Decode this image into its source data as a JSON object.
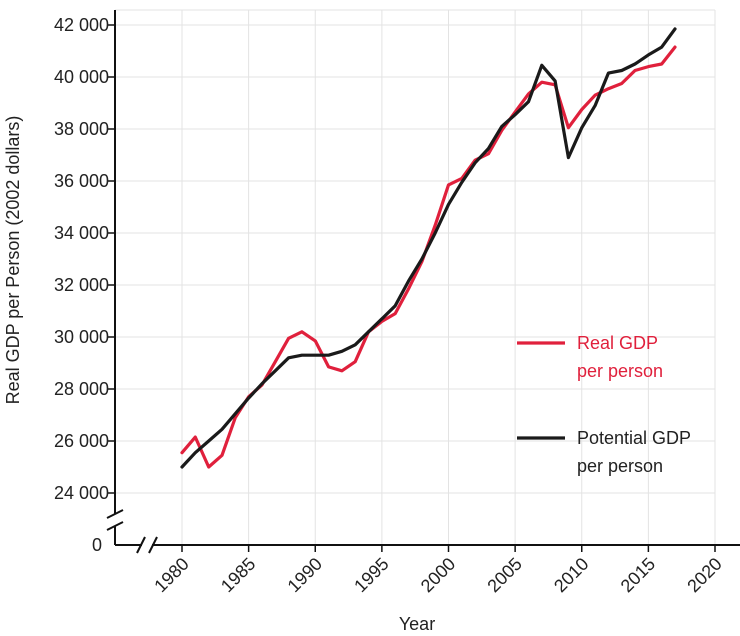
{
  "chart_data": {
    "type": "line",
    "xlabel": "Year",
    "ylabel": "Real GDP per Person (2002 dollars)",
    "x_ticks": [
      1980,
      1985,
      1990,
      1995,
      2000,
      2005,
      2010,
      2015,
      2020
    ],
    "y_ticks": [
      {
        "value": 24000,
        "label": "24 000"
      },
      {
        "value": 26000,
        "label": "26 000"
      },
      {
        "value": 28000,
        "label": "28 000"
      },
      {
        "value": 30000,
        "label": "30 000"
      },
      {
        "value": 32000,
        "label": "32 000"
      },
      {
        "value": 34000,
        "label": "34 000"
      },
      {
        "value": 36000,
        "label": "36 000"
      },
      {
        "value": 38000,
        "label": "38 000"
      },
      {
        "value": 40000,
        "label": "40 000"
      },
      {
        "value": 42000,
        "label": "42 000"
      }
    ],
    "y_origin_label": "0",
    "xlim": [
      1975,
      2020
    ],
    "ylim": [
      23000,
      42500
    ],
    "axis_break": true,
    "grid": true,
    "legend_position": "right",
    "series": [
      {
        "name": "Real GDP per person",
        "legend_lines": [
          "Real GDP",
          "per person"
        ],
        "color": "#e0203c",
        "x": [
          1980,
          1981,
          1982,
          1983,
          1984,
          1985,
          1986,
          1987,
          1988,
          1989,
          1990,
          1991,
          1992,
          1993,
          1994,
          1995,
          1996,
          1997,
          1998,
          1999,
          2000,
          2001,
          2002,
          2003,
          2004,
          2005,
          2006,
          2007,
          2008,
          2009,
          2010,
          2011,
          2012,
          2013,
          2014,
          2015,
          2016,
          2017
        ],
        "y": [
          25550,
          26150,
          25000,
          25450,
          26900,
          27700,
          28150,
          29050,
          29950,
          30200,
          29850,
          28850,
          28700,
          29050,
          30200,
          30600,
          30900,
          31850,
          32900,
          34300,
          35850,
          36100,
          36800,
          37050,
          37950,
          38650,
          39350,
          39800,
          39700,
          38050,
          38750,
          39300,
          39550,
          39750,
          40250,
          40400,
          40500,
          41150
        ]
      },
      {
        "name": "Potential GDP per person",
        "legend_lines": [
          "Potential GDP",
          "per person"
        ],
        "color": "#1a1a1a",
        "x": [
          1980,
          1981,
          1982,
          1983,
          1984,
          1985,
          1986,
          1987,
          1988,
          1989,
          1990,
          1991,
          1992,
          1993,
          1994,
          1995,
          1996,
          1997,
          1998,
          1999,
          2000,
          2001,
          2002,
          2003,
          2004,
          2005,
          2006,
          2007,
          2008,
          2009,
          2010,
          2011,
          2012,
          2013,
          2014,
          2015,
          2016,
          2017
        ],
        "y": [
          25000,
          25550,
          26000,
          26450,
          27050,
          27650,
          28200,
          28700,
          29200,
          29300,
          29300,
          29300,
          29450,
          29700,
          30200,
          30700,
          31200,
          32150,
          33000,
          34000,
          35100,
          35950,
          36700,
          37250,
          38100,
          38550,
          39050,
          40450,
          39850,
          36900,
          38050,
          38900,
          40150,
          40250,
          40500,
          40850,
          41150,
          41850
        ]
      }
    ]
  }
}
